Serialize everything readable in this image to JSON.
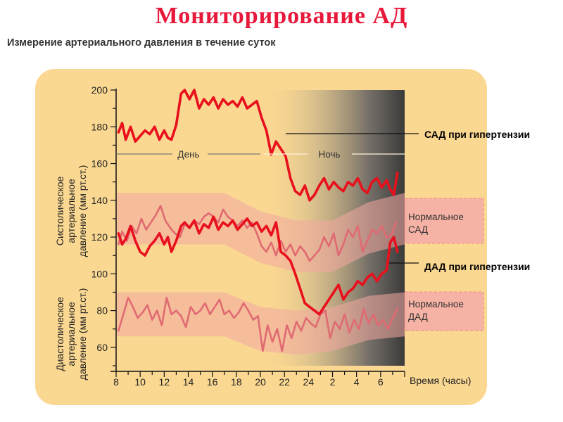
{
  "page": {
    "title": "Мониторирование АД",
    "subtitle": "Измерение артериального давления в течение суток"
  },
  "colors": {
    "background_panel": "#fbd892",
    "hypertension_line": "#e8101c",
    "normal_line": "#e06a72",
    "normal_band": "#f2a7a0",
    "night_shade": "#3a3a3a"
  },
  "chart_data": {
    "type": "line",
    "title": "",
    "xlabel": "Время (часы)",
    "ylabel_top": "Систолическое артериальное давление (мм рт.ст.)",
    "ylabel_bottom": "Диастолическое артериальное давление (мм рт.ст.)",
    "x_ticks": [
      "8",
      "10",
      "12",
      "14",
      "16",
      "18",
      "20",
      "22",
      "24",
      "2",
      "4",
      "6"
    ],
    "y_ticks": [
      60,
      80,
      100,
      120,
      140,
      160,
      180,
      200
    ],
    "xlim": [
      8,
      32
    ],
    "ylim": [
      50,
      200
    ],
    "grid": false,
    "period_labels": {
      "day": "День",
      "night": "Ночь"
    },
    "series": [
      {
        "name": "САД при гипертензии",
        "x": [
          8.2,
          8.5,
          8.8,
          9.2,
          9.6,
          10,
          10.4,
          10.8,
          11.2,
          11.6,
          12,
          12.3,
          12.6,
          13,
          13.4,
          13.7,
          14.1,
          14.5,
          14.9,
          15.3,
          15.7,
          16.1,
          16.5,
          16.9,
          17.3,
          17.7,
          18.1,
          18.5,
          18.9,
          19.3,
          19.7,
          20.1,
          20.5,
          20.9,
          21.3,
          21.7,
          22.1,
          22.5,
          22.9,
          23.3,
          23.7,
          24.1,
          24.5,
          24.9,
          25.3,
          25.7,
          26.1,
          26.5,
          26.9,
          27.3,
          27.7,
          28.1,
          28.5,
          28.9,
          29.3,
          29.7,
          30.1,
          30.5,
          30.8,
          31.1,
          31.4
        ],
        "values": [
          177,
          182,
          173,
          180,
          172,
          175,
          178,
          176,
          180,
          173,
          178,
          174,
          173,
          181,
          198,
          200,
          195,
          200,
          190,
          195,
          192,
          196,
          190,
          195,
          192,
          194,
          191,
          196,
          190,
          192,
          194,
          185,
          178,
          165,
          172,
          168,
          164,
          152,
          145,
          143,
          148,
          140,
          143,
          148,
          152,
          146,
          150,
          147,
          145,
          150,
          148,
          152,
          146,
          144,
          150,
          152,
          147,
          151,
          146,
          143,
          155
        ]
      },
      {
        "name": "ДАД при гипертензии",
        "x": [
          8.2,
          8.5,
          8.8,
          9.2,
          9.6,
          10,
          10.4,
          10.8,
          11.2,
          11.6,
          12,
          12.3,
          12.6,
          13,
          13.4,
          13.7,
          14.1,
          14.5,
          14.9,
          15.3,
          15.7,
          16.1,
          16.5,
          16.9,
          17.3,
          17.7,
          18.1,
          18.5,
          18.9,
          19.3,
          19.7,
          20.1,
          20.5,
          20.9,
          21.3,
          21.7,
          22.1,
          22.5,
          22.9,
          23.3,
          23.7,
          24.1,
          24.5,
          24.9,
          25.3,
          25.7,
          26.1,
          26.5,
          26.9,
          27.3,
          27.7,
          28.1,
          28.5,
          28.9,
          29.3,
          29.7,
          30.1,
          30.5,
          30.8,
          31.1,
          31.4
        ],
        "values": [
          122,
          116,
          119,
          126,
          118,
          112,
          110,
          115,
          118,
          122,
          116,
          120,
          112,
          118,
          126,
          128,
          125,
          129,
          122,
          127,
          125,
          131,
          124,
          128,
          126,
          129,
          124,
          127,
          130,
          126,
          128,
          123,
          126,
          121,
          128,
          112,
          110,
          107,
          100,
          92,
          84,
          82,
          80,
          78,
          82,
          86,
          90,
          94,
          86,
          90,
          92,
          96,
          94,
          98,
          100,
          96,
          100,
          102,
          117,
          120,
          112
        ]
      },
      {
        "name": "Нормальное САД",
        "x": [
          8.2,
          8.5,
          8.9,
          9.3,
          9.7,
          10.1,
          10.5,
          10.9,
          11.3,
          11.7,
          12.1,
          12.5,
          12.9,
          13.3,
          13.7,
          14.1,
          14.5,
          14.9,
          15.3,
          15.7,
          16.1,
          16.5,
          16.9,
          17.3,
          17.7,
          18.1,
          18.5,
          18.9,
          19.3,
          19.7,
          20.1,
          20.5,
          20.9,
          21.3,
          21.7,
          22.1,
          22.5,
          22.9,
          23.3,
          23.7,
          24.1,
          24.5,
          24.9,
          25.3,
          25.7,
          26.1,
          26.5,
          26.9,
          27.3,
          27.7,
          28.1,
          28.5,
          28.9,
          29.3,
          29.7,
          30.1,
          30.5,
          30.9,
          31.3
        ],
        "values": [
          116,
          123,
          118,
          126,
          122,
          130,
          124,
          128,
          132,
          137,
          129,
          125,
          122,
          120,
          127,
          125,
          129,
          127,
          131,
          133,
          131,
          128,
          135,
          131,
          129,
          126,
          129,
          125,
          128,
          122,
          115,
          112,
          117,
          110,
          118,
          112,
          116,
          110,
          115,
          112,
          107,
          110,
          113,
          120,
          115,
          122,
          110,
          116,
          124,
          120,
          126,
          112,
          118,
          124,
          122,
          126,
          120,
          121,
          128
        ]
      },
      {
        "name": "Нормальное ДАД",
        "x": [
          8.2,
          8.6,
          9,
          9.4,
          9.8,
          10.2,
          10.6,
          11,
          11.4,
          11.8,
          12.2,
          12.6,
          13,
          13.4,
          13.8,
          14.2,
          14.6,
          15,
          15.4,
          15.8,
          16.2,
          16.6,
          17,
          17.4,
          17.8,
          18.2,
          18.6,
          19,
          19.4,
          19.8,
          20.2,
          20.6,
          21,
          21.4,
          21.8,
          22.2,
          22.6,
          23,
          23.4,
          23.8,
          24.2,
          24.6,
          25,
          25.4,
          25.8,
          26.2,
          26.6,
          27,
          27.4,
          27.8,
          28.2,
          28.6,
          29,
          29.4,
          29.8,
          30.2,
          30.6,
          31,
          31.4
        ],
        "values": [
          69,
          78,
          87,
          82,
          76,
          79,
          83,
          75,
          80,
          72,
          87,
          78,
          80,
          77,
          71,
          82,
          78,
          80,
          84,
          78,
          82,
          86,
          78,
          80,
          76,
          79,
          84,
          80,
          75,
          77,
          58,
          72,
          63,
          70,
          58,
          72,
          65,
          74,
          69,
          76,
          73,
          71,
          78,
          80,
          65,
          74,
          70,
          78,
          68,
          75,
          70,
          81,
          73,
          78,
          72,
          75,
          70,
          76,
          81
        ]
      }
    ],
    "bands": [
      {
        "name": "Нормальное САД band",
        "center": [
          130,
          130,
          130,
          130,
          120,
          115,
          115,
          125,
          130
        ],
        "half_width": 14
      },
      {
        "name": "Нормальное ДАД band",
        "center": [
          78,
          78,
          78,
          78,
          70,
          68,
          70,
          76,
          78
        ],
        "half_width": 12
      }
    ],
    "annotations": [
      {
        "text": "САД при гипертензии",
        "style": "bold"
      },
      {
        "text": "Нормальное САД",
        "style": "box"
      },
      {
        "text": "ДАД при гипертензии",
        "style": "bold"
      },
      {
        "text": "Нормальное ДАД",
        "style": "box"
      }
    ]
  }
}
